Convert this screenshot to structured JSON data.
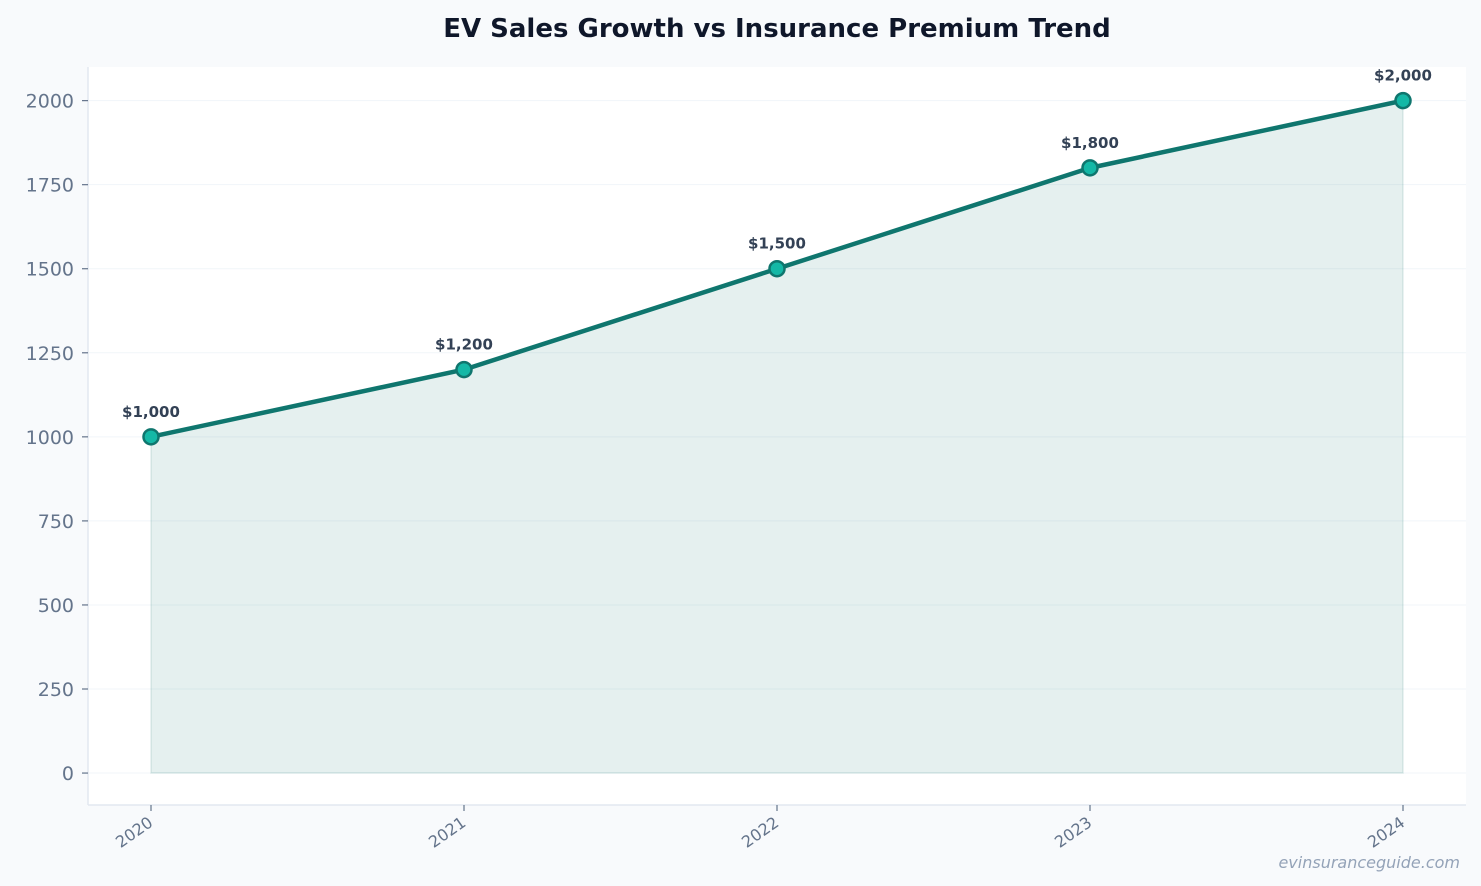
{
  "chart_data": {
    "type": "area",
    "title": "EV Sales Growth vs Insurance Premium Trend",
    "xlabel": "",
    "ylabel": "",
    "categories": [
      "2020",
      "2021",
      "2022",
      "2023",
      "2024"
    ],
    "series": [
      {
        "values": [
          1000,
          1200,
          1500,
          1800,
          2000
        ]
      }
    ],
    "data_labels": [
      "$1,000",
      "$1,200",
      "$1,500",
      "$1,800",
      "$2,000"
    ],
    "y_ticks": [
      0,
      250,
      500,
      750,
      1000,
      1250,
      1500,
      1750,
      2000
    ],
    "y_tick_labels": [
      "0",
      "250",
      "500",
      "750",
      "1000",
      "1250",
      "1500",
      "1750",
      "2000"
    ],
    "ylim": [
      -95,
      2100
    ],
    "grid": true,
    "legend": "none",
    "colors": {
      "line": "#0f766e",
      "marker_fill": "#14b8a6",
      "fill": "#0f766e",
      "title": "#0f172a",
      "tick": "#64748b",
      "data_label": "#334155",
      "grid": "#f1f5f9",
      "axis": "#e2e8f0",
      "watermark": "#94a3b8"
    }
  },
  "watermark": "evinsuranceguide.com"
}
